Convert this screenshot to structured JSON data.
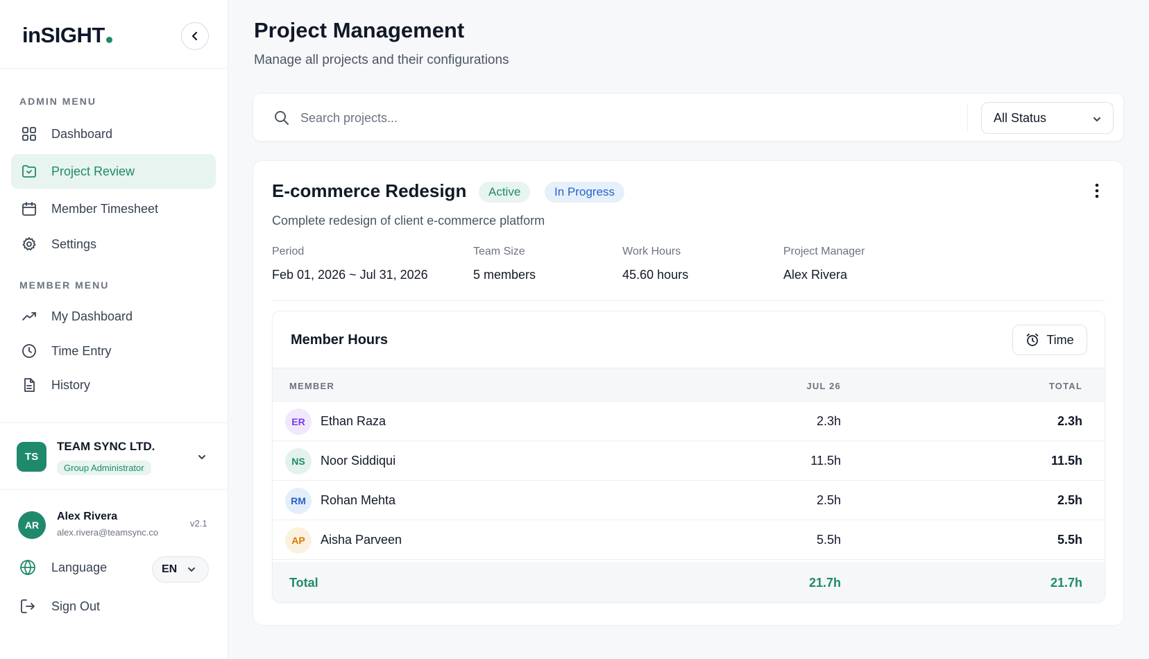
{
  "brand": {
    "logo_text": "inSIGHT"
  },
  "sidebar": {
    "admin_label": "ADMIN MENU",
    "admin_items": [
      {
        "label": "Dashboard",
        "icon": "grid-icon"
      },
      {
        "label": "Project Review",
        "icon": "folder-icon",
        "active": true
      },
      {
        "label": "Member Timesheet",
        "icon": "calendar-icon"
      },
      {
        "label": "Settings",
        "icon": "gear-icon"
      }
    ],
    "member_label": "MEMBER MENU",
    "member_items": [
      {
        "label": "My Dashboard",
        "icon": "trending-up-icon"
      },
      {
        "label": "Time Entry",
        "icon": "clock-icon"
      },
      {
        "label": "History",
        "icon": "document-icon"
      }
    ],
    "org": {
      "initials": "TS",
      "name": "TEAM SYNC LTD.",
      "role": "Group Administrator"
    },
    "user": {
      "initials": "AR",
      "name": "Alex Rivera",
      "email": "alex.rivera@teamsync.co",
      "version": "v2.1"
    },
    "language": {
      "label": "Language",
      "value": "EN"
    },
    "signout_label": "Sign Out"
  },
  "header": {
    "title": "Project Management",
    "subtitle": "Manage all projects and their configurations"
  },
  "search": {
    "placeholder": "Search projects...",
    "status_filter": "All Status"
  },
  "project": {
    "title": "E-commerce Redesign",
    "badge_status": "Active",
    "badge_phase": "In Progress",
    "description": "Complete redesign of client e-commerce platform",
    "meta": {
      "period_label": "Period",
      "period_value": "Feb 01, 2026 ~ Jul 31, 2026",
      "team_label": "Team Size",
      "team_value": "5 members",
      "hours_label": "Work Hours",
      "hours_value": "45.60 hours",
      "manager_label": "Project Manager",
      "manager_value": "Alex Rivera"
    }
  },
  "member_hours": {
    "title": "Member Hours",
    "time_button": "Time",
    "columns": {
      "member": "MEMBER",
      "period": "JUL 26",
      "total": "TOTAL"
    },
    "rows": [
      {
        "initials": "ER",
        "name": "Ethan Raza",
        "period": "2.3h",
        "total": "2.3h",
        "avatar_bg": "#efe9fb",
        "avatar_fg": "#7c3aed"
      },
      {
        "initials": "NS",
        "name": "Noor Siddiqui",
        "period": "11.5h",
        "total": "11.5h",
        "avatar_bg": "#e3f3ec",
        "avatar_fg": "#1f8a6b"
      },
      {
        "initials": "RM",
        "name": "Rohan Mehta",
        "period": "2.5h",
        "total": "2.5h",
        "avatar_bg": "#e4eefb",
        "avatar_fg": "#2563c9"
      },
      {
        "initials": "AP",
        "name": "Aisha Parveen",
        "period": "5.5h",
        "total": "5.5h",
        "avatar_bg": "#fbf1df",
        "avatar_fg": "#d97706"
      }
    ],
    "footer": {
      "label": "Total",
      "period": "21.7h",
      "total": "21.7h"
    }
  },
  "colors": {
    "accent": "#1f8a6b",
    "info": "#2563c9"
  }
}
